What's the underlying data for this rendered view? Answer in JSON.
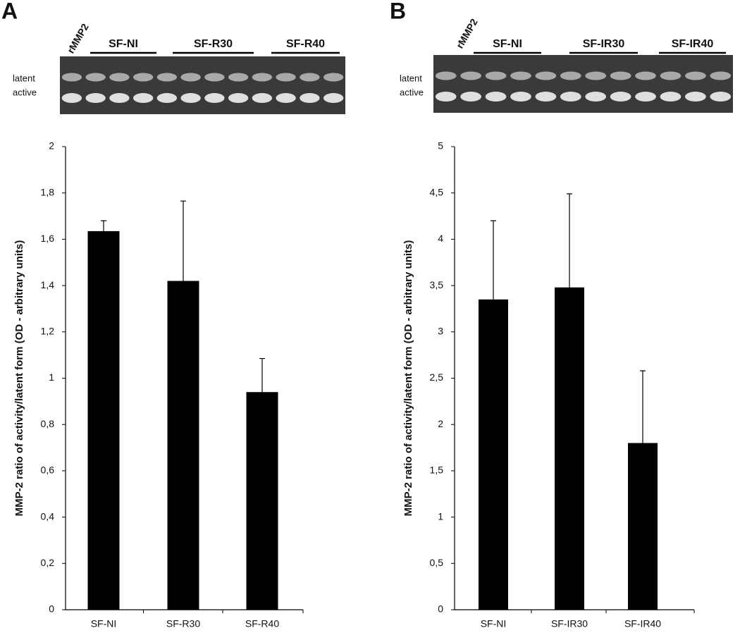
{
  "chart_data": [
    {
      "type": "bar",
      "panel": "A",
      "gel": {
        "lane_label": "rMMP2",
        "groups": [
          "SF-NI",
          "SF-R30",
          "SF-R40"
        ],
        "bands": [
          "latent",
          "active"
        ]
      },
      "y_label": "MMP-2 ratio of activity/latent form (OD - arbitrary units)",
      "categories": [
        "SF-NI",
        "SF-R30",
        "SF-R40"
      ],
      "values": [
        1.635,
        1.42,
        0.94
      ],
      "errors": [
        0.045,
        0.345,
        0.145
      ],
      "color": "#000000",
      "ylim": [
        0,
        2
      ],
      "yticks": [
        0,
        {
          "value": 0.2,
          "label": "0,2"
        },
        {
          "value": 0.4,
          "label": "0,4"
        },
        {
          "value": 0.6,
          "label": "0,6"
        },
        {
          "value": 0.8,
          "label": "0,8"
        },
        1,
        {
          "value": 1.2,
          "label": "1,2"
        },
        {
          "value": 1.4,
          "label": "1,4"
        },
        {
          "value": 1.6,
          "label": "1,6"
        },
        {
          "value": 1.8,
          "label": "1,8"
        },
        2
      ],
      "grid": false
    },
    {
      "type": "bar",
      "panel": "B",
      "gel": {
        "lane_label": "rMMP2",
        "groups": [
          "SF-NI",
          "SF-IR30",
          "SF-IR40"
        ],
        "bands": [
          "latent",
          "active"
        ]
      },
      "y_label": "MMP-2 ratio of activity/latent form (OD - arbitrary units)",
      "categories": [
        "SF-NI",
        "SF-IR30",
        "SF-IR40"
      ],
      "values": [
        3.35,
        3.48,
        1.8
      ],
      "errors": [
        0.85,
        1.01,
        0.78
      ],
      "color": "#000000",
      "ylim": [
        0,
        5
      ],
      "yticks": [
        0,
        {
          "value": 0.5,
          "label": "0,5"
        },
        1,
        {
          "value": 1.5,
          "label": "1,5"
        },
        2,
        {
          "value": 2.5,
          "label": "2,5"
        },
        3,
        {
          "value": 3.5,
          "label": "3,5"
        },
        4,
        {
          "value": 4.5,
          "label": "4,5"
        },
        5
      ],
      "grid": false
    }
  ]
}
